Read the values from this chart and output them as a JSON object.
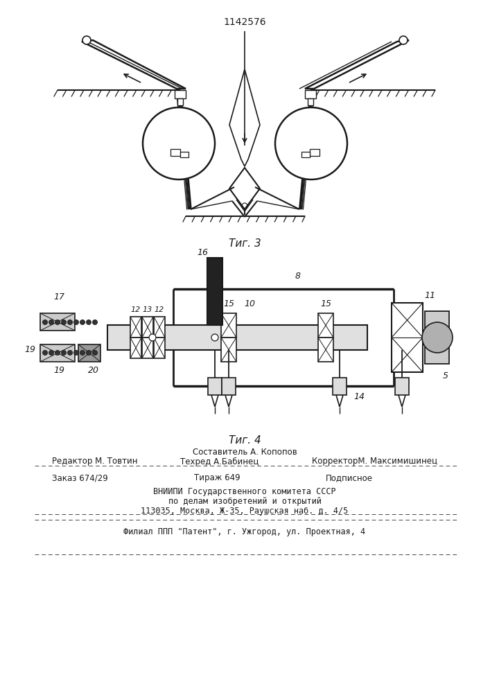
{
  "title": "1142576",
  "fig3_caption": "Τиг. 3",
  "fig4_caption": "Τиг. 4",
  "line_color": "#1a1a1a",
  "text_color": "#1a1a1a",
  "footer": {
    "sostavitel": "Составитель А. Копопов",
    "redaktor": "Редактор М. Товтин",
    "tekhred": "Техред А.Бабинец",
    "korrektor": "КорректорМ. Максимишинец",
    "zakaz": "Заказ 674/29",
    "tirazh": "Тираж 649",
    "podpisnoe": "Подписное",
    "vniiipi1": "ВНИИПИ Государственного комитета СССР",
    "vniiipi2": "по делам изобретений и открытий",
    "vniiipi3": "113035, Москва, Ж-35, Раушская наб. д. 4/5",
    "filial": "Филиал ППП \"Патент\", г. Ужгород, ул. Проектная, 4"
  }
}
